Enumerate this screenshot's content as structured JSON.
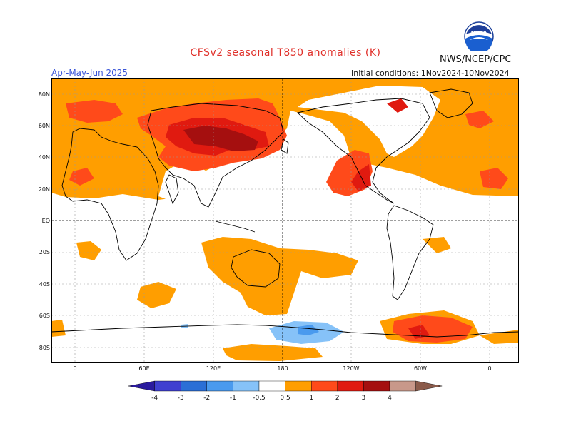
{
  "header": {
    "title": "CFSv2 seasonal T850 anomalies (K)",
    "season": "Apr-May-Jun 2025",
    "initial_conditions": "Initial conditions: 1Nov2024-10Nov2024",
    "agency": "NWS/NCEP/CPC",
    "logo_text": "NOAA"
  },
  "map": {
    "lat_labels": [
      "80N",
      "60N",
      "40N",
      "20N",
      "EQ",
      "20S",
      "40S",
      "60S",
      "80S"
    ],
    "lon_labels": [
      "0",
      "60E",
      "120E",
      "180",
      "120W",
      "60W",
      "0"
    ]
  },
  "colorbar": {
    "labels": [
      "-4",
      "-3",
      "-2",
      "-1",
      "-0.5",
      "0.5",
      "1",
      "2",
      "3",
      "4"
    ],
    "colors": [
      "#2a1a9e",
      "#3f3fd0",
      "#2b6fd6",
      "#4a9aee",
      "#86c2f8",
      "#ffffff",
      "#ff9e00",
      "#ff4a1a",
      "#e01a10",
      "#a50f0f",
      "#c8988a",
      "#8a5a4a"
    ]
  },
  "colors": {
    "anomaly_05_1": "#ff9e00",
    "anomaly_1_2": "#ff4a1a",
    "anomaly_2_3": "#e01a10",
    "anomaly_3_4": "#a50f0f",
    "anomaly_neg_05_1": "#86c2f8",
    "anomaly_neg_1_2": "#4a9aee"
  }
}
